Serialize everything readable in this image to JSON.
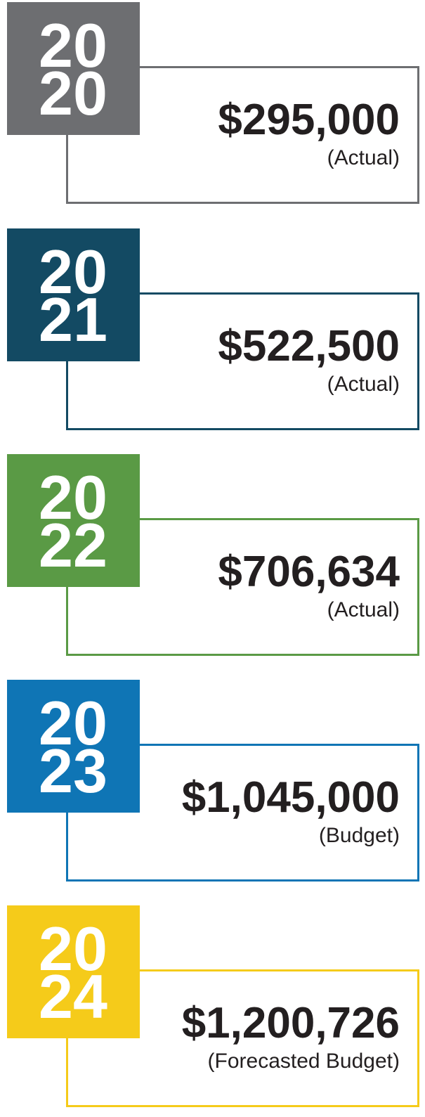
{
  "items": [
    {
      "year_lines": [
        "20",
        "20"
      ],
      "amount": "$295,000",
      "note": "(Actual)",
      "color": "#6d6e71"
    },
    {
      "year_lines": [
        "20",
        "21"
      ],
      "amount": "$522,500",
      "note": "(Actual)",
      "color": "#134a63"
    },
    {
      "year_lines": [
        "20",
        "22"
      ],
      "amount": "$706,634",
      "note": "(Actual)",
      "color": "#5a9a45"
    },
    {
      "year_lines": [
        "20",
        "23"
      ],
      "amount": "$1,045,000",
      "note": "(Budget)",
      "color": "#0f75b5"
    },
    {
      "year_lines": [
        "20",
        "24"
      ],
      "amount": "$1,200,726",
      "note": "(Forecasted Budget)",
      "color": "#f5cb1a"
    }
  ]
}
